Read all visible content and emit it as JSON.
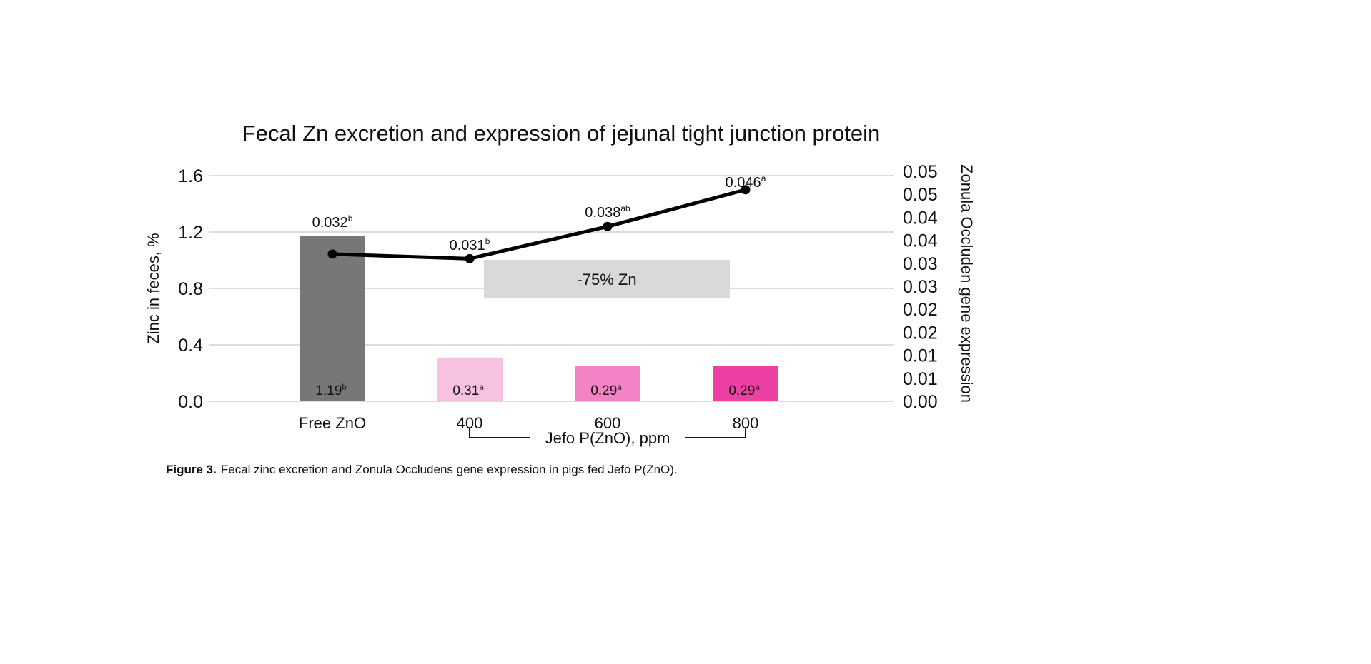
{
  "chart_data": {
    "type": "bar+line",
    "title": "Fecal Zn excretion and expression of jejunal tight junction protein",
    "ylabel": "Zinc in feces, %",
    "y2label": "Zonula Occluden gene expression",
    "ylim": [
      0,
      1.6
    ],
    "y2lim": [
      0,
      0.05
    ],
    "yticks": [
      "0.0",
      "0.4",
      "0.8",
      "1.2",
      "1.6"
    ],
    "y2ticks": [
      "0.00",
      "0.01",
      "0.01",
      "0.02",
      "0.02",
      "0.03",
      "0.03",
      "0.04",
      "0.04",
      "0.05",
      "0.05"
    ],
    "categories": [
      "Free ZnO",
      "400",
      "600",
      "800"
    ],
    "group_label": "Jefo P(ZnO), ppm",
    "bars": {
      "name": "Zinc in feces, %",
      "values": [
        1.19,
        0.31,
        0.29,
        0.29
      ],
      "labels": [
        "1.19",
        "0.31",
        "0.29",
        "0.29"
      ],
      "sup": [
        "b",
        "a",
        "a",
        "a"
      ],
      "colors": [
        "#777777",
        "#f7c1e1",
        "#f283c4",
        "#ee3fa4"
      ]
    },
    "line": {
      "name": "Zonula Occluden gene expression",
      "values": [
        0.032,
        0.031,
        0.038,
        0.046
      ],
      "labels": [
        "0.032",
        "0.031",
        "0.038",
        "0.046"
      ],
      "sup": [
        "b",
        "b",
        "ab",
        "a"
      ],
      "color": "#000000"
    },
    "annotation": "-75% Zn",
    "grid": true
  },
  "caption": {
    "label": "Figure 3.",
    "text": "Fecal zinc excretion and Zonula Occludens gene expression in pigs fed Jefo P(ZnO)."
  }
}
